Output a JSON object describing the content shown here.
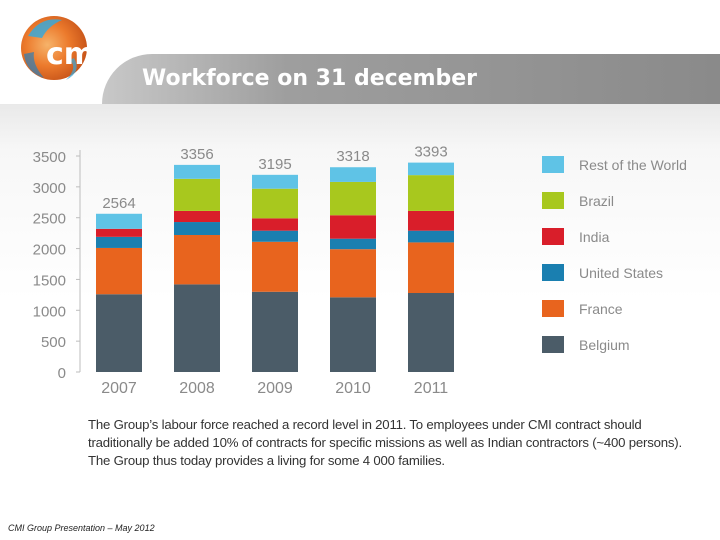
{
  "header": {
    "logo_text": "cmi",
    "title": "Workforce on 31 december"
  },
  "chart_data": {
    "type": "bar",
    "stacked": true,
    "categories": [
      "2007",
      "2008",
      "2009",
      "2010",
      "2011"
    ],
    "series": [
      {
        "name": "Belgium",
        "color": "#4b5c68",
        "values": [
          1260,
          1420,
          1300,
          1210,
          1280
        ]
      },
      {
        "name": "France",
        "color": "#e8641e",
        "values": [
          750,
          800,
          810,
          780,
          820
        ]
      },
      {
        "name": "United States",
        "color": "#1a7fb0",
        "values": [
          180,
          210,
          180,
          170,
          190
        ]
      },
      {
        "name": "India",
        "color": "#d91e2a",
        "values": [
          130,
          180,
          200,
          380,
          320
        ]
      },
      {
        "name": "Brazil",
        "color": "#a8c81e",
        "values": [
          0,
          520,
          480,
          540,
          580
        ]
      },
      {
        "name": "Rest of the World",
        "color": "#5fc3e6",
        "values": [
          244,
          226,
          225,
          238,
          203
        ]
      }
    ],
    "totals": [
      "2564",
      "3356",
      "3195",
      "3318",
      "3393"
    ],
    "y_ticks": [
      "0",
      "500",
      "1000",
      "1500",
      "2000",
      "2500",
      "3000",
      "3500"
    ],
    "ylim": [
      0,
      3500
    ],
    "grid": false,
    "legend_position": "right"
  },
  "note": {
    "line1": "The Group’s labour force reached a record level in 2011. To employees under CMI contract should",
    "line2": "traditionally be added 10% of contracts for specific missions as well as Indian contractors (~400 persons).",
    "line3": "The Group thus today provides a living for some 4 000 families."
  },
  "footer": {
    "text": "CMI Group Presentation – May 2012"
  }
}
